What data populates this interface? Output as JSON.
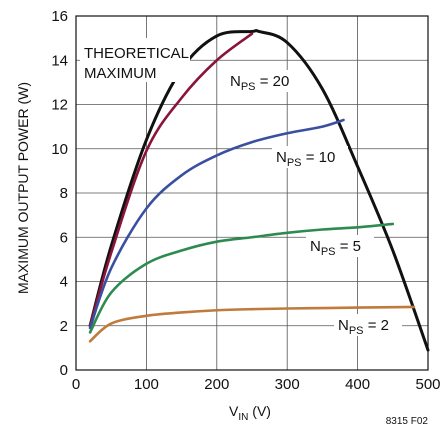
{
  "chart_data": {
    "type": "line",
    "ylabel": "MAXIMUM OUTPUT POWER (W)",
    "xlabel_main": "V",
    "xlabel_sub": "IN",
    "xlabel_unit": " (V)",
    "figure_code": "8315 F02",
    "xlim": [
      0,
      500
    ],
    "ylim": [
      0,
      16
    ],
    "xticks": [
      0,
      100,
      200,
      300,
      400,
      500
    ],
    "yticks": [
      0,
      2,
      4,
      6,
      8,
      10,
      12,
      14,
      16
    ],
    "grid": true,
    "series": [
      {
        "name": "THEORETICAL MAXIMUM",
        "color": "#111111",
        "x": [
          20,
          50,
          100,
          150,
          200,
          250,
          260,
          300,
          350,
          400,
          450,
          500
        ],
        "y": [
          2.0,
          5.6,
          10.4,
          13.6,
          15.1,
          15.3,
          15.3,
          14.8,
          12.7,
          9.2,
          5.4,
          0.9
        ]
      },
      {
        "name": "N_PS = 20",
        "color": "#8a1538",
        "x": [
          20,
          50,
          100,
          150,
          200,
          250
        ],
        "y": [
          2.0,
          5.3,
          9.9,
          12.3,
          14.0,
          15.2
        ]
      },
      {
        "name": "N_PS = 10",
        "color": "#3a4fa0",
        "x": [
          20,
          50,
          100,
          150,
          200,
          250,
          300,
          350,
          380
        ],
        "y": [
          1.9,
          4.6,
          7.3,
          8.8,
          9.7,
          10.3,
          10.7,
          11.0,
          11.3
        ]
      },
      {
        "name": "N_PS = 5",
        "color": "#2e8b4f",
        "x": [
          20,
          50,
          100,
          150,
          200,
          250,
          300,
          350,
          400,
          450
        ],
        "y": [
          1.7,
          3.5,
          4.8,
          5.4,
          5.8,
          6.0,
          6.2,
          6.35,
          6.45,
          6.6
        ]
      },
      {
        "name": "N_PS = 2",
        "color": "#c07a3c",
        "x": [
          20,
          50,
          100,
          150,
          200,
          250,
          300,
          350,
          400,
          480
        ],
        "y": [
          1.3,
          2.1,
          2.45,
          2.6,
          2.7,
          2.75,
          2.78,
          2.8,
          2.82,
          2.85
        ]
      }
    ],
    "annotations": [
      {
        "lines": [
          "THEORETICAL",
          "MAXIMUM"
        ]
      },
      {
        "main": "N",
        "sub": "PS",
        "rest": " = 20"
      },
      {
        "main": "N",
        "sub": "PS",
        "rest": " = 10"
      },
      {
        "main": "N",
        "sub": "PS",
        "rest": " = 5"
      },
      {
        "main": "N",
        "sub": "PS",
        "rest": " = 2"
      }
    ]
  }
}
